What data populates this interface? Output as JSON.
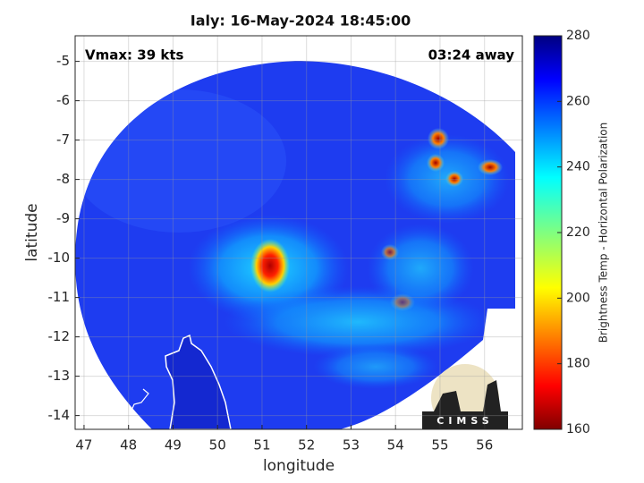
{
  "chart_data": {
    "type": "map",
    "title": "Ialy: 16-May-2024 18:45:00",
    "xlabel": "longitude",
    "ylabel": "latitude",
    "xlim": [
      46.8,
      56.85
    ],
    "ylim": [
      -14.35,
      -4.35
    ],
    "xticks": [
      47,
      48,
      49,
      50,
      51,
      52,
      53,
      54,
      55,
      56
    ],
    "yticks": [
      -14,
      -13,
      -12,
      -11,
      -10,
      -9,
      -8,
      -7,
      -6,
      -5
    ],
    "grid": true,
    "annotations": [
      "Vmax: 39 kts",
      "03:24 away"
    ],
    "logo": "CIMSS",
    "colorbar": {
      "label": "Brightness Temp - Horizontal Polarization",
      "lim": [
        160,
        280
      ],
      "ticks": [
        160,
        180,
        200,
        220,
        240,
        260,
        280
      ]
    }
  }
}
